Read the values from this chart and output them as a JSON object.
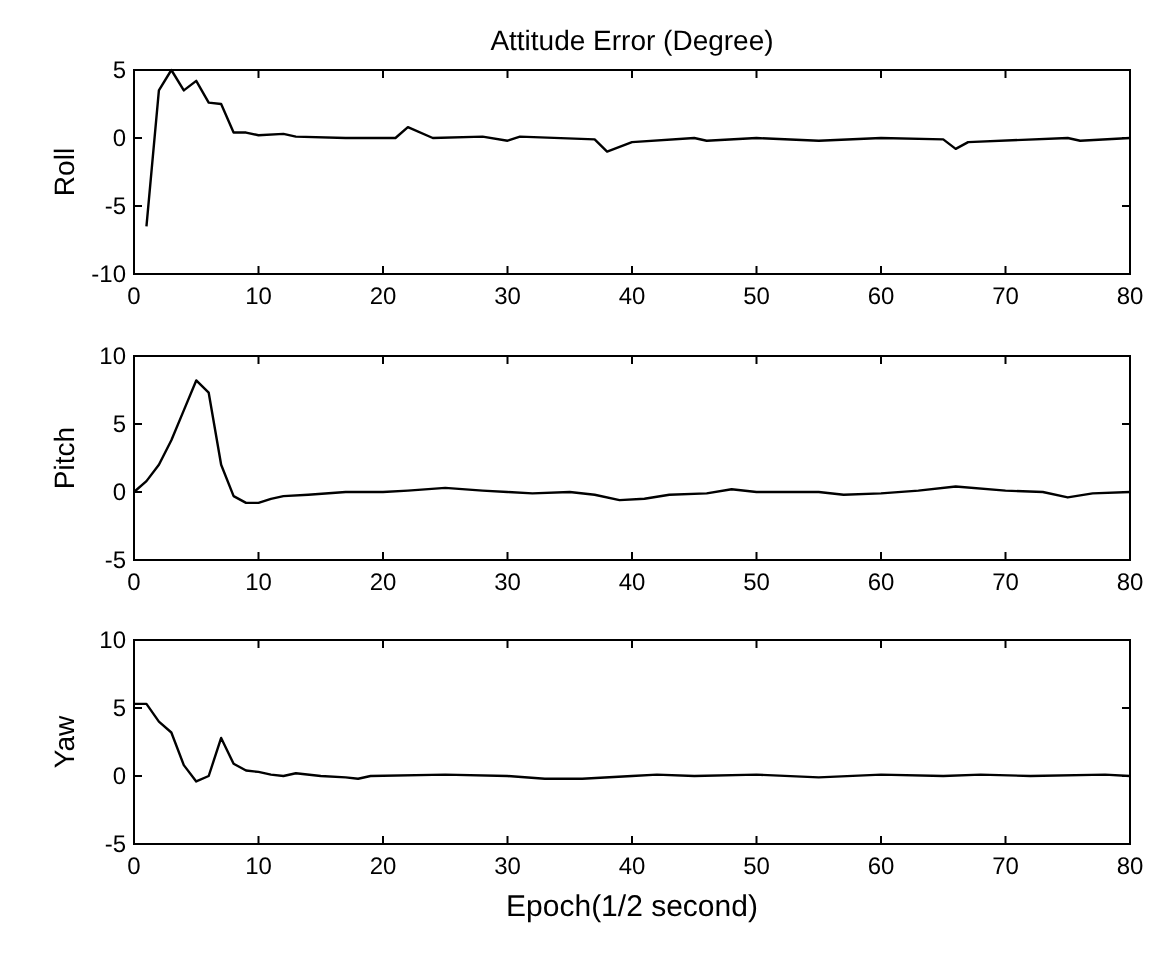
{
  "chart_data": [
    {
      "type": "line",
      "title": "Attitude  Error (Degree)",
      "ylabel": "Roll",
      "xlim": [
        0,
        80
      ],
      "xticks": [
        0,
        10,
        20,
        30,
        40,
        50,
        60,
        70,
        80
      ],
      "ylim": [
        -10,
        5
      ],
      "yticks": [
        -10,
        -5,
        0,
        5
      ],
      "series": [
        {
          "color": "#000000",
          "x": [
            1,
            2,
            3,
            4,
            5,
            6,
            7,
            8,
            9,
            10,
            12,
            13,
            17,
            21,
            22,
            24,
            28,
            30,
            31,
            37,
            38,
            40,
            45,
            46,
            50,
            55,
            60,
            65,
            66,
            67,
            75,
            76,
            80
          ],
          "values": [
            -6.5,
            3.5,
            5,
            3.5,
            4.2,
            2.6,
            2.5,
            0.4,
            0.4,
            0.2,
            0.3,
            0.1,
            0,
            0,
            0.8,
            0,
            0.1,
            -0.2,
            0.1,
            -0.1,
            -1.0,
            -0.3,
            0,
            -0.2,
            0,
            -0.2,
            0,
            -0.1,
            -0.8,
            -0.3,
            0,
            -0.2,
            0
          ]
        }
      ]
    },
    {
      "type": "line",
      "ylabel": "Pitch",
      "xlim": [
        0,
        80
      ],
      "xticks": [
        0,
        10,
        20,
        30,
        40,
        50,
        60,
        70,
        80
      ],
      "ylim": [
        -5,
        10
      ],
      "yticks": [
        -5,
        0,
        5,
        10
      ],
      "series": [
        {
          "color": "#000000",
          "x": [
            0,
            1,
            2,
            3,
            4,
            5,
            6,
            7,
            8,
            9,
            10,
            11,
            12,
            14,
            17,
            20,
            22,
            25,
            28,
            30,
            32,
            35,
            37,
            39,
            41,
            43,
            46,
            48,
            50,
            55,
            57,
            60,
            63,
            66,
            70,
            73,
            75,
            77,
            80
          ],
          "values": [
            0,
            0.8,
            2,
            3.8,
            6,
            8.2,
            7.3,
            2,
            -0.3,
            -0.8,
            -0.8,
            -0.5,
            -0.3,
            -0.2,
            0,
            0,
            0.1,
            0.3,
            0.1,
            0,
            -0.1,
            0,
            -0.2,
            -0.6,
            -0.5,
            -0.2,
            -0.1,
            0.2,
            0,
            0,
            -0.2,
            -0.1,
            0.1,
            0.4,
            0.1,
            0,
            -0.4,
            -0.1,
            0
          ]
        }
      ]
    },
    {
      "type": "line",
      "ylabel": "Yaw",
      "xlabel": "Epoch(1/2 second)",
      "xlim": [
        0,
        80
      ],
      "xticks": [
        0,
        10,
        20,
        30,
        40,
        50,
        60,
        70,
        80
      ],
      "ylim": [
        -5,
        10
      ],
      "yticks": [
        -5,
        0,
        5,
        10
      ],
      "series": [
        {
          "color": "#000000",
          "x": [
            0,
            1,
            2,
            3,
            4,
            5,
            6,
            7,
            8,
            9,
            10,
            11,
            12,
            13,
            15,
            17,
            18,
            19,
            25,
            30,
            33,
            36,
            40,
            42,
            45,
            50,
            55,
            60,
            65,
            68,
            72,
            78,
            80
          ],
          "values": [
            5.3,
            5.3,
            4,
            3.2,
            0.8,
            -0.4,
            0,
            2.8,
            0.9,
            0.4,
            0.3,
            0.1,
            0,
            0.2,
            0,
            -0.1,
            -0.2,
            0,
            0.1,
            0,
            -0.2,
            -0.2,
            0,
            0.1,
            0,
            0.1,
            -0.1,
            0.1,
            0,
            0.1,
            0,
            0.1,
            0
          ]
        }
      ]
    }
  ]
}
